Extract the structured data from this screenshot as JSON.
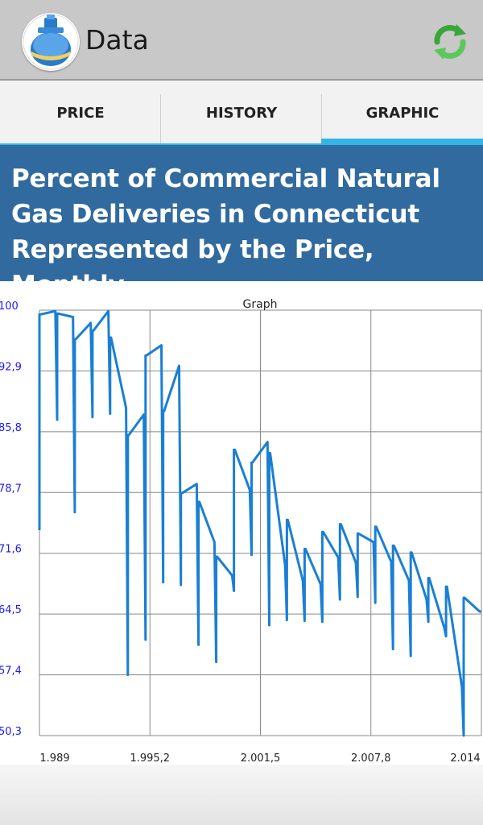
{
  "app": {
    "title": "Data",
    "logo_icon": "gas-cylinder-icon",
    "refresh_icon": "refresh-arrows-icon"
  },
  "tabs": [
    {
      "label": "PRICE",
      "active": false
    },
    {
      "label": "HISTORY",
      "active": false
    },
    {
      "label": "GRAPHIC",
      "active": true
    }
  ],
  "banner": {
    "title": "Percent of Commercial Natural Gas Deliveries in Connecticut Represented by the Price, Monthly"
  },
  "colors": {
    "accent": "#33b5e5",
    "banner": "#316a9e",
    "line": "#1a7fd4",
    "ytick": "#1a1aff"
  },
  "chart_data": {
    "type": "line",
    "title": "Graph",
    "xlabel": "",
    "ylabel": "",
    "xlim": [
      1989,
      2014
    ],
    "ylim": [
      50.3,
      100
    ],
    "grid": true,
    "x_ticks": [
      "1.989",
      "1.995,2",
      "2.001,5",
      "2.007,8",
      "2.014"
    ],
    "y_ticks": [
      "100",
      "92,9",
      "85,8",
      "78,7",
      "71,6",
      "64,5",
      "57,4",
      "50,3"
    ],
    "series": [
      {
        "x": [
          1989,
          1989,
          1989.05,
          1989.9,
          1990,
          1990,
          1990.05,
          1990.9,
          1991,
          1991,
          1991.05,
          1991.9,
          1992,
          1992,
          1992.05,
          1992.9,
          1993,
          1993,
          1993.05,
          1993.9,
          1994,
          1994,
          1994.05,
          1994.9,
          1995,
          1995,
          1995.05,
          1995.9,
          1996,
          1996,
          1996.05,
          1996.9,
          1997,
          1997,
          1997.05,
          1997.9,
          1998,
          1998,
          1998.05,
          1998.9,
          1999,
          1999,
          1999.05,
          1999.9,
          2000,
          2000,
          2000.05,
          2000.9,
          2001,
          2001,
          2001.05,
          2001.9,
          2002,
          2002,
          2002.05,
          2002.9,
          2003,
          2003,
          2003.05,
          2003.9,
          2004,
          2004,
          2004.05,
          2004.9,
          2005,
          2005,
          2005.05,
          2005.9,
          2006,
          2006,
          2006.05,
          2006.9,
          2007,
          2007,
          2007.05,
          2007.9,
          2008,
          2008,
          2008.05,
          2008.9,
          2009,
          2009,
          2009.05,
          2009.9,
          2010,
          2010,
          2010.05,
          2010.9,
          2011,
          2011,
          2011.05,
          2011.9,
          2012,
          2012,
          2012.05,
          2012.9,
          2013,
          2013,
          2013.05,
          2013.9,
          2014
        ],
        "values": [
          74.3,
          99.5,
          99.5,
          99.9,
          87.2,
          99.6,
          99.6,
          99.2,
          76.4,
          96.6,
          96.6,
          98.5,
          87.5,
          97.6,
          97.6,
          99.9,
          87.9,
          96.8,
          96.8,
          88.6,
          57.4,
          85.4,
          85.4,
          87.8,
          61.5,
          94.7,
          94.7,
          95.9,
          68.2,
          88.2,
          88.2,
          93.5,
          67.9,
          78.6,
          78.6,
          79.7,
          60.9,
          77.6,
          77.6,
          72.9,
          58.9,
          71.2,
          71.2,
          69.0,
          67.2,
          83.7,
          83.7,
          79.0,
          71.4,
          82.2,
          82.2,
          84.6,
          63.2,
          83.3,
          83.3,
          70.2,
          63.8,
          75.5,
          75.5,
          68.4,
          63.7,
          72.1,
          72.1,
          68.0,
          63.6,
          74.1,
          74.1,
          71.1,
          66.2,
          75.0,
          75.0,
          70.5,
          66.5,
          73.9,
          73.9,
          72.9,
          65.8,
          74.7,
          74.7,
          70.6,
          60.4,
          72.5,
          72.5,
          68.4,
          59.6,
          71.7,
          71.7,
          66.2,
          63.6,
          68.7,
          68.7,
          62.9,
          61.9,
          67.7,
          67.7,
          56.0,
          50.3,
          66.4,
          66.4,
          64.8,
          64.8
        ]
      }
    ]
  }
}
